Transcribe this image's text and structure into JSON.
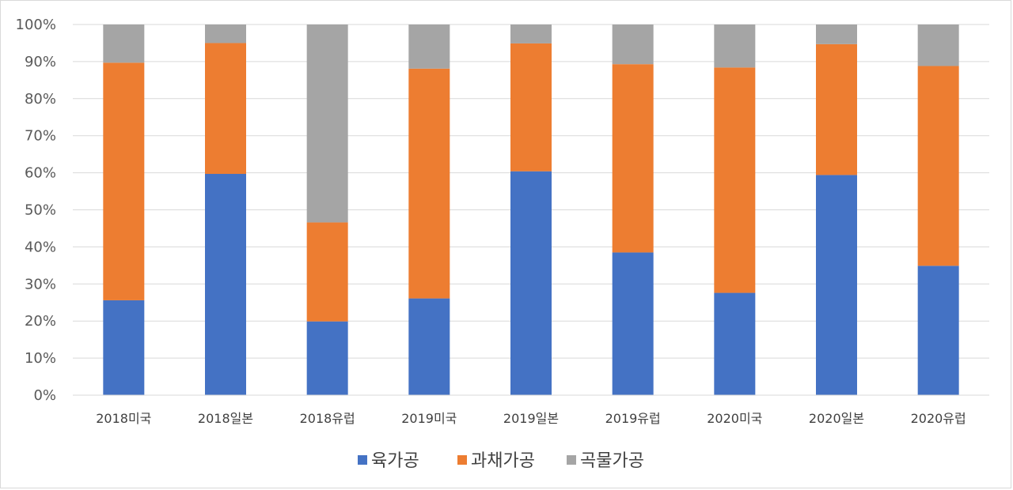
{
  "chart_data": {
    "type": "bar",
    "stacked": true,
    "percent": true,
    "categories": [
      "2018미국",
      "2018일본",
      "2018유럽",
      "2019미국",
      "2019일본",
      "2019유럽",
      "2020미국",
      "2020일본",
      "2020유럽"
    ],
    "series": [
      {
        "name": "육가공",
        "color": "#4472c4",
        "values": [
          25.6,
          59.7,
          19.9,
          26.1,
          60.4,
          38.5,
          27.6,
          59.4,
          34.9
        ]
      },
      {
        "name": "과채가공",
        "color": "#ed7d31",
        "values": [
          64.1,
          35.3,
          26.7,
          62.0,
          34.5,
          50.8,
          60.8,
          35.3,
          53.9
        ]
      },
      {
        "name": "곡물가공",
        "color": "#a5a5a5",
        "values": [
          10.3,
          5.0,
          53.4,
          11.9,
          5.1,
          10.7,
          11.6,
          5.3,
          11.2
        ]
      }
    ],
    "y_ticks": [
      "0%",
      "10%",
      "20%",
      "30%",
      "40%",
      "50%",
      "60%",
      "70%",
      "80%",
      "90%",
      "100%"
    ],
    "ylim": [
      0,
      100
    ],
    "grid": true,
    "legend_position": "bottom",
    "title": "",
    "xlabel": "",
    "ylabel": ""
  }
}
